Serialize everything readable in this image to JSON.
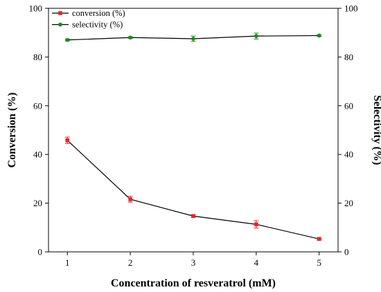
{
  "chart_data": {
    "type": "line",
    "xlabel": "Concentration of resveratrol (mM)",
    "ylabel": "Conversion (%)",
    "y2label": "Selectivity (%)",
    "x": [
      1,
      2,
      3,
      4,
      5
    ],
    "xlim": [
      0.7,
      5.3
    ],
    "xticks": [
      1,
      2,
      3,
      4,
      5
    ],
    "ylim": [
      0,
      100
    ],
    "yticks": [
      0,
      20,
      40,
      60,
      80,
      100
    ],
    "y2lim": [
      0,
      100
    ],
    "y2ticks": [
      0,
      20,
      40,
      60,
      80,
      100
    ],
    "grid": false,
    "legend_position": "top-left",
    "series": [
      {
        "name": "conversion (%)",
        "axis": "left",
        "color": "#e8242a",
        "marker": "square",
        "values": [
          45.8,
          21.6,
          14.7,
          11.3,
          5.3
        ],
        "errors": [
          1.3,
          1.2,
          0.5,
          1.5,
          0.4
        ]
      },
      {
        "name": "selectivity (%)",
        "axis": "right",
        "color": "#1a8a1a",
        "marker": "circle",
        "values": [
          87.0,
          88.0,
          87.5,
          88.6,
          88.8
        ],
        "errors": [
          0.4,
          0.3,
          1.1,
          1.2,
          0.3
        ]
      }
    ]
  }
}
